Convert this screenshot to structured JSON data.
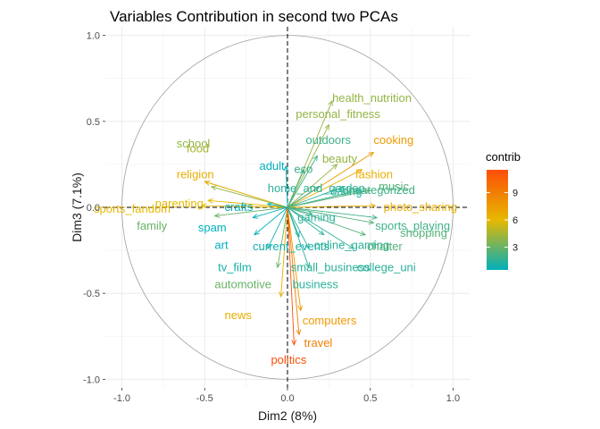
{
  "chart_data": {
    "type": "scatter",
    "subtype": "pca-variable-correlation-circle",
    "title": "Variables Contribution in second two PCAs",
    "xlabel": "Dim2 (8%)",
    "ylabel": "Dim3 (7.1%)",
    "xlim": [
      -1.1,
      1.1
    ],
    "ylim": [
      -1.05,
      1.05
    ],
    "xticks": [
      -1.0,
      -0.5,
      0.0,
      0.5,
      1.0
    ],
    "xtick_labels": [
      "-1.0",
      "-0.5",
      "0.0",
      "0.5",
      "1.0"
    ],
    "yticks": [
      -1.0,
      -0.5,
      0.0,
      0.5,
      1.0
    ],
    "ytick_labels": [
      "-1.0",
      "-0.5",
      "0.0",
      "0.5",
      "1.0"
    ],
    "grid": true,
    "unit_circle": true,
    "dashed_zero_lines": true,
    "legend": {
      "title": "contrib",
      "position": "right",
      "ticks": [
        3,
        6,
        9
      ],
      "tick_labels": [
        "3",
        "6",
        "9"
      ],
      "range": [
        0.5,
        11.5
      ],
      "colors": [
        "#00AFBB",
        "#E7B800",
        "#FC4E07"
      ]
    },
    "variables": [
      {
        "name": "health_nutrition",
        "x": 0.27,
        "y": 0.62,
        "contrib": 4.0,
        "label_dx": 0.0,
        "label_dy": 0.0
      },
      {
        "name": "personal_fitness",
        "x": 0.25,
        "y": 0.48,
        "contrib": 4.0,
        "label_dx": 0.0,
        "label_dy": 0.0
      },
      {
        "name": "cooking",
        "x": 0.52,
        "y": 0.32,
        "contrib": 7.5,
        "label_dx": 0.0,
        "label_dy": 0.0
      },
      {
        "name": "outdoors",
        "x": 0.18,
        "y": 0.3,
        "contrib": 2.0,
        "label_dx": 0.0,
        "label_dy": 0.0
      },
      {
        "name": "beauty",
        "x": 0.3,
        "y": 0.25,
        "contrib": 4.0,
        "label_dx": 0.0,
        "label_dy": 0.0
      },
      {
        "name": "fashion",
        "x": 0.45,
        "y": 0.22,
        "contrib": 6.5,
        "label_dx": 0.0,
        "label_dy": 0.0
      },
      {
        "name": "adult",
        "x": -0.01,
        "y": 0.24,
        "contrib": 0.5,
        "label_dx": 0.0,
        "label_dy": 0.0
      },
      {
        "name": "eco",
        "x": 0.1,
        "y": 0.22,
        "contrib": 2.0,
        "label_dx": 0.0,
        "label_dy": 0.0
      },
      {
        "name": "food",
        "x": -0.5,
        "y": 0.15,
        "contrib": 4.5,
        "label_dx": 0.0,
        "label_dy": 0.0
      },
      {
        "name": "religion",
        "x": -0.5,
        "y": 0.15,
        "contrib": 6.5,
        "label_dx": 0.0,
        "label_dy": 0.0
      },
      {
        "name": "school",
        "x": -0.46,
        "y": 0.12,
        "contrib": 4.0,
        "label_dx": 0.0,
        "label_dy": 0.0
      },
      {
        "name": "home_and_garden",
        "x": 0.19,
        "y": 0.12,
        "contrib": 1.5,
        "label_dx": 0.0,
        "label_dy": 0.0
      },
      {
        "name": "dating",
        "x": 0.34,
        "y": 0.12,
        "contrib": 1.5,
        "label_dx": 0.0,
        "label_dy": 0.0
      },
      {
        "name": "uncategorized",
        "x": 0.44,
        "y": 0.1,
        "contrib": 2.0,
        "label_dx": 0.0,
        "label_dy": 0.0
      },
      {
        "name": "music",
        "x": 0.5,
        "y": 0.1,
        "contrib": 2.5,
        "label_dx": 0.0,
        "label_dy": 0.0
      },
      {
        "name": "sports_fandom",
        "x": -0.52,
        "y": 0.01,
        "contrib": 6.0,
        "label_dx": 0.0,
        "label_dy": 0.0
      },
      {
        "name": "parenting",
        "x": -0.48,
        "y": 0.04,
        "contrib": 6.0,
        "label_dx": 0.0,
        "label_dy": 0.0
      },
      {
        "name": "crafts",
        "x": -0.12,
        "y": 0.02,
        "contrib": 0.5,
        "label_dx": 0.0,
        "label_dy": 0.0
      },
      {
        "name": "photo_sharing",
        "x": 0.53,
        "y": 0.01,
        "contrib": 6.5,
        "label_dx": 0.0,
        "label_dy": 0.0
      },
      {
        "name": "family",
        "x": -0.44,
        "y": -0.05,
        "contrib": 3.0,
        "label_dx": 0.0,
        "label_dy": 0.0
      },
      {
        "name": "spam",
        "x": -0.21,
        "y": -0.06,
        "contrib": 0.5,
        "label_dx": 0.0,
        "label_dy": 0.0
      },
      {
        "name": "gaming",
        "x": 0.15,
        "y": -0.04,
        "contrib": 1.5,
        "label_dx": 0.0,
        "label_dy": 0.0
      },
      {
        "name": "sports_playing",
        "x": 0.54,
        "y": -0.06,
        "contrib": 2.0,
        "label_dx": 0.0,
        "label_dy": 0.0
      },
      {
        "name": "shopping",
        "x": 0.52,
        "y": -0.09,
        "contrib": 2.5,
        "label_dx": 0.0,
        "label_dy": 0.0
      },
      {
        "name": "art",
        "x": -0.2,
        "y": -0.16,
        "contrib": 0.5,
        "label_dx": 0.0,
        "label_dy": 0.0
      },
      {
        "name": "current_events",
        "x": 0.07,
        "y": -0.17,
        "contrib": 1.0,
        "label_dx": 0.0,
        "label_dy": 0.0
      },
      {
        "name": "online_gaming",
        "x": 0.22,
        "y": -0.16,
        "contrib": 1.5,
        "label_dx": 0.0,
        "label_dy": 0.0
      },
      {
        "name": "chatter",
        "x": 0.47,
        "y": -0.16,
        "contrib": 2.5,
        "label_dx": 0.0,
        "label_dy": 0.0
      },
      {
        "name": "tv_film",
        "x": -0.12,
        "y": -0.24,
        "contrib": 1.0,
        "label_dx": 0.0,
        "label_dy": 0.0
      },
      {
        "name": "small_business",
        "x": 0.13,
        "y": -0.24,
        "contrib": 1.5,
        "label_dx": 0.0,
        "label_dy": 0.0
      },
      {
        "name": "college_uni",
        "x": 0.4,
        "y": -0.24,
        "contrib": 1.5,
        "label_dx": 0.0,
        "label_dy": 0.0
      },
      {
        "name": "automotive",
        "x": -0.06,
        "y": -0.35,
        "contrib": 3.0,
        "label_dx": 0.0,
        "label_dy": 0.0
      },
      {
        "name": "business",
        "x": 0.13,
        "y": -0.35,
        "contrib": 1.5,
        "label_dx": 0.0,
        "label_dy": 0.0
      },
      {
        "name": "news",
        "x": -0.04,
        "y": -0.52,
        "contrib": 6.5,
        "label_dx": 0.0,
        "label_dy": 0.0
      },
      {
        "name": "computers",
        "x": 0.08,
        "y": -0.6,
        "contrib": 7.5,
        "label_dx": 0.0,
        "label_dy": 0.0
      },
      {
        "name": "travel",
        "x": 0.07,
        "y": -0.74,
        "contrib": 9.0,
        "label_dx": 0.0,
        "label_dy": 0.0
      },
      {
        "name": "politics",
        "x": 0.04,
        "y": -0.8,
        "contrib": 11.5,
        "label_dx": 0.0,
        "label_dy": 0.0
      }
    ]
  }
}
